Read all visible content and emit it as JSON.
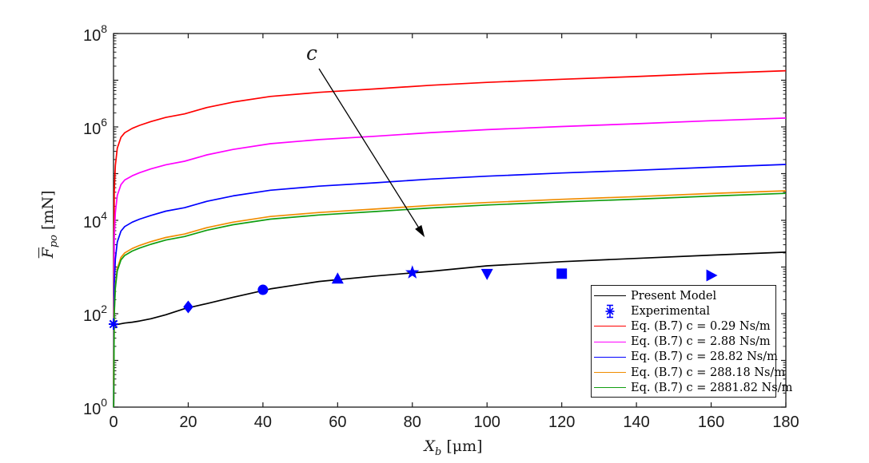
{
  "chart_data": {
    "type": "line",
    "title": "",
    "xlabel": {
      "symbol": "X",
      "subscript": "b",
      "unit": "[μm]"
    },
    "ylabel": {
      "symbol": "F",
      "overline": true,
      "subscript": "po",
      "unit": "[mN]"
    },
    "x_axis": {
      "min": 0,
      "max": 180,
      "ticks": [
        0,
        20,
        40,
        60,
        80,
        100,
        120,
        140,
        160,
        180
      ]
    },
    "y_axis": {
      "scale": "log",
      "min_exponent": 0,
      "max_exponent": 8,
      "labeled_exponents": [
        0,
        2,
        4,
        6,
        8
      ],
      "tick_base": "10"
    },
    "annotation": {
      "label": "c",
      "meaning": "arrow indicates increasing damping coefficient c"
    },
    "x_samples": [
      0.05,
      0.2,
      0.5,
      1,
      2,
      3,
      5,
      7,
      10,
      14,
      19,
      25,
      32,
      42,
      55,
      70,
      85,
      100,
      120,
      140,
      160,
      180
    ],
    "series": [
      {
        "name": "Present Model",
        "color": "#000000",
        "c": null,
        "values": [
          58,
          58,
          58.5,
          59,
          61,
          63,
          66,
          70,
          78,
          95,
          128,
          165,
          225,
          340,
          490,
          640,
          810,
          1060,
          1300,
          1530,
          1800,
          2080
        ]
      },
      {
        "name": "Eq. (B.7) c = 0.29 Ns/m",
        "color": "#FF0000",
        "c": 0.29,
        "values": [
          3,
          40000,
          150000,
          350000,
          600000,
          750000,
          930000,
          1080000,
          1300000,
          1600000,
          1900000,
          2600000,
          3400000,
          4500000,
          5500000,
          6500000,
          7800000,
          9000000,
          10500000,
          12000000,
          14000000,
          16000000
        ]
      },
      {
        "name": "Eq. (B.7) c = 2.88 Ns/m",
        "color": "#FF00FF",
        "c": 2.88,
        "values": [
          0.3,
          3900,
          14600,
          34000,
          58000,
          73000,
          90000,
          105000,
          126000,
          155000,
          184000,
          252000,
          330000,
          437000,
          534000,
          631000,
          757000,
          874000,
          1020000,
          1170000,
          1360000,
          1550000
        ]
      },
      {
        "name": "Eq. (B.7) c = 28.82 Ns/m",
        "color": "#0000FF",
        "c": 28.82,
        "values": [
          0.03,
          390,
          1470,
          3430,
          5880,
          7350,
          9120,
          10600,
          12700,
          15700,
          18600,
          25500,
          33300,
          44100,
          53900,
          63700,
          76500,
          88200,
          103000,
          118000,
          137000,
          157000
        ]
      },
      {
        "name": "Eq. (B.7) c = 288.18 Ns/m",
        "color": "#F08C00",
        "c": 288.18,
        "values": [
          0.008,
          107,
          402,
          938,
          1610,
          2010,
          2490,
          2900,
          3490,
          4290,
          5090,
          6970,
          9120,
          12100,
          14700,
          17400,
          20900,
          24100,
          28200,
          32200,
          37500,
          42900
        ]
      },
      {
        "name": "Eq. (B.7) c = 2881.82 Ns/m",
        "color": "#109E10",
        "c": 2881.82,
        "values": [
          0.007,
          95,
          355,
          827,
          1420,
          1770,
          2200,
          2550,
          3070,
          3780,
          4490,
          6150,
          8040,
          10600,
          13000,
          15400,
          18400,
          21300,
          24800,
          28400,
          33100,
          37800
        ]
      }
    ],
    "experimental": {
      "name": "Experimental",
      "color": "#0000FF",
      "x": [
        0,
        20,
        40,
        60,
        80,
        100,
        120,
        160
      ],
      "values": [
        60,
        140,
        325,
        560,
        760,
        720,
        720,
        660
      ],
      "markers": [
        "asterisk",
        "diamond",
        "circle",
        "triangle-up",
        "star",
        "triangle-down",
        "square",
        "triangle-right"
      ]
    }
  },
  "legend": {
    "entries": [
      {
        "label": "Present Model",
        "color": "#000000",
        "glyph": "line"
      },
      {
        "label": "Experimental",
        "color": "#0000FF",
        "glyph": "errorbar-asterisk"
      },
      {
        "label": "Eq. (B.7) c = 0.29 Ns/m",
        "color": "#FF0000",
        "glyph": "line"
      },
      {
        "label": "Eq. (B.7) c = 2.88 Ns/m",
        "color": "#FF00FF",
        "glyph": "line"
      },
      {
        "label": "Eq. (B.7) c = 28.82 Ns/m",
        "color": "#0000FF",
        "glyph": "line"
      },
      {
        "label": "Eq. (B.7) c = 288.18 Ns/m",
        "color": "#F08C00",
        "glyph": "line"
      },
      {
        "label": "Eq. (B.7) c = 2881.82 Ns/m",
        "color": "#109E10",
        "glyph": "line"
      }
    ]
  },
  "colors": {
    "axis": "#1a1a1a",
    "background": "#ffffff",
    "experimental_marker": "#0000FF"
  }
}
